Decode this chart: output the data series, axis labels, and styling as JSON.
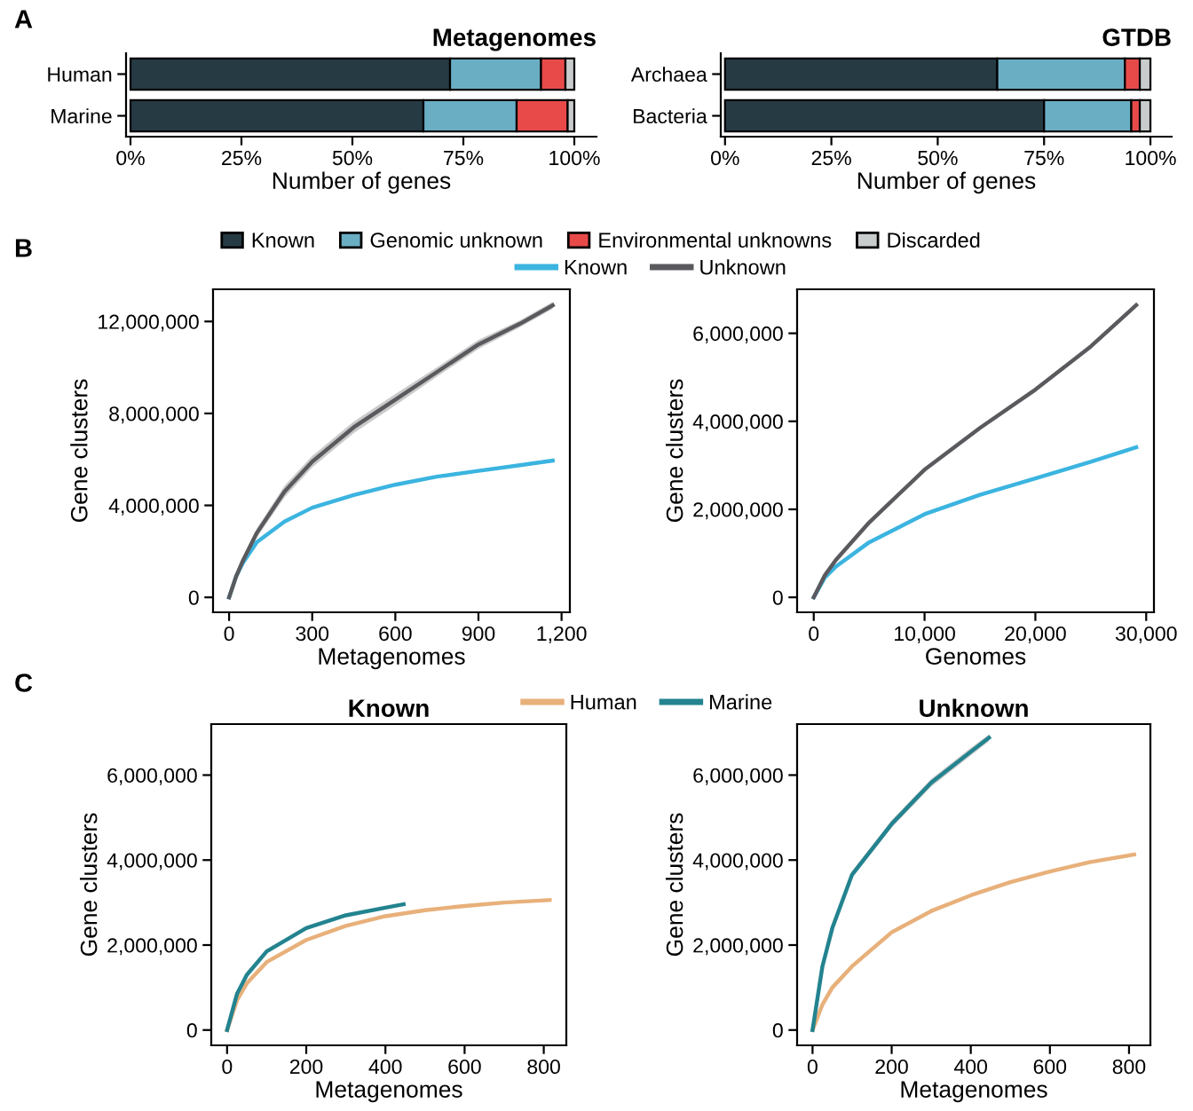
{
  "chart_data": [
    {
      "type": "bar",
      "orientation": "horizontal",
      "stacked": true,
      "title": "Metagenomes",
      "xlabel": "Number of genes",
      "annotations": [
        "A"
      ],
      "legend": "bottom right",
      "categories": [
        "Human",
        "Marine"
      ],
      "xlim": [
        -1,
        105
      ],
      "xticks": [
        {
          "value": 0,
          "label": "0%"
        },
        {
          "value": 25,
          "label": "25%"
        },
        {
          "value": 50,
          "label": "50%"
        },
        {
          "value": 75,
          "label": "75%"
        },
        {
          "value": 100,
          "label": "100%"
        }
      ],
      "series": [
        {
          "name": "Known",
          "color": "#263a44",
          "values": [
            72,
            66
          ]
        },
        {
          "name": "Genomic unknown",
          "color": "#6aaec4",
          "values": [
            20.5,
            21
          ]
        },
        {
          "name": "Environmental unknowns",
          "color": "#e84a4a",
          "values": [
            5.5,
            11.5
          ]
        },
        {
          "name": "Discarded",
          "color": "#c8cccc",
          "values": [
            2,
            1.5
          ]
        }
      ]
    },
    {
      "type": "bar",
      "orientation": "horizontal",
      "stacked": true,
      "title": "GTDB",
      "xlabel": "Number of genes",
      "categories": [
        "Archaea",
        "Bacteria"
      ],
      "xlim": [
        -1,
        105
      ],
      "xticks": [
        {
          "value": 0,
          "label": "0%"
        },
        {
          "value": 25,
          "label": "25%"
        },
        {
          "value": 50,
          "label": "50%"
        },
        {
          "value": 75,
          "label": "75%"
        },
        {
          "value": 100,
          "label": "100%"
        }
      ],
      "series": [
        {
          "color": "#263a44",
          "values": [
            64,
            75
          ]
        },
        {
          "color": "#6aaec4",
          "values": [
            30,
            20.5
          ]
        },
        {
          "color": "#e84a4a",
          "values": [
            3.5,
            2
          ]
        },
        {
          "color": "#c8cccc",
          "values": [
            2.5,
            2.5
          ]
        }
      ]
    },
    {
      "type": "line",
      "xlabel": "Metagenomes",
      "ylabel": "Gene clusters",
      "annotations": [
        "B"
      ],
      "legend": "top right",
      "xlim": [
        -58,
        1230
      ],
      "ylim": [
        -650000,
        13400000
      ],
      "xticks": [
        0,
        300,
        600,
        900,
        {
          "value": 1200,
          "label": "1,200"
        }
      ],
      "yticks": [
        0,
        {
          "value": 4000000,
          "label": "4,000,000"
        },
        {
          "value": 8000000,
          "label": "8,000,000"
        },
        {
          "value": 12000000,
          "label": "12,000,000"
        }
      ],
      "series": [
        {
          "name": "Known",
          "color": "#3bb4e0",
          "x": [
            0,
            25,
            50,
            100,
            200,
            300,
            450,
            600,
            750,
            900,
            1050,
            1168
          ],
          "values": [
            0,
            900000,
            1500000,
            2400000,
            3300000,
            3900000,
            4450000,
            4900000,
            5250000,
            5500000,
            5750000,
            5950000
          ]
        },
        {
          "name": "Unknown",
          "color": "#5a5a5e",
          "x": [
            0,
            25,
            50,
            100,
            200,
            300,
            450,
            600,
            750,
            900,
            1050,
            1168
          ],
          "values": [
            0,
            900000,
            1600000,
            2800000,
            4600000,
            5900000,
            7400000,
            8600000,
            9800000,
            11000000,
            11900000,
            12700000
          ],
          "lower": [
            0,
            800000,
            1450000,
            2600000,
            4350000,
            5650000,
            7150000,
            8350000,
            9600000,
            10800000,
            11750000,
            12550000
          ],
          "upper": [
            0,
            1000000,
            1750000,
            3000000,
            4850000,
            6150000,
            7650000,
            8850000,
            10000000,
            11200000,
            12050000,
            12850000
          ]
        }
      ]
    },
    {
      "type": "line",
      "xlabel": "Genomes",
      "ylabel": "Gene clusters",
      "xlim": [
        -1500,
        30700
      ],
      "ylim": [
        -340000,
        7000000
      ],
      "xticks": [
        0,
        {
          "value": 10000,
          "label": "10,000"
        },
        {
          "value": 20000,
          "label": "20,000"
        },
        {
          "value": 30000,
          "label": "30,000"
        }
      ],
      "yticks": [
        0,
        {
          "value": 2000000,
          "label": "2,000,000"
        },
        {
          "value": 4000000,
          "label": "4,000,000"
        },
        {
          "value": 6000000,
          "label": "6,000,000"
        }
      ],
      "series": [
        {
          "color": "#3bb4e0",
          "x": [
            0,
            1000,
            2000,
            5000,
            10000,
            15000,
            20000,
            25000,
            29100
          ],
          "values": [
            0,
            450000,
            700000,
            1250000,
            1890000,
            2330000,
            2700000,
            3080000,
            3410000
          ]
        },
        {
          "color": "#5a5a5e",
          "x": [
            0,
            1000,
            2000,
            5000,
            10000,
            15000,
            20000,
            25000,
            29100
          ],
          "values": [
            0,
            500000,
            850000,
            1700000,
            2900000,
            3850000,
            4720000,
            5700000,
            6640000
          ]
        }
      ]
    },
    {
      "type": "line",
      "title": "Known",
      "xlabel": "Metagenomes",
      "ylabel": "Gene clusters",
      "annotations": [
        "C"
      ],
      "legend": "top right",
      "xlim": [
        -40,
        857
      ],
      "ylim": [
        -360000,
        7200000
      ],
      "xticks": [
        0,
        200,
        400,
        600,
        800
      ],
      "yticks": [
        0,
        {
          "value": 2000000,
          "label": "2,000,000"
        },
        {
          "value": 4000000,
          "label": "4,000,000"
        },
        {
          "value": 6000000,
          "label": "6,000,000"
        }
      ],
      "series": [
        {
          "name": "Human",
          "color": "#e8b07a",
          "x": [
            0,
            25,
            50,
            100,
            200,
            300,
            400,
            500,
            600,
            700,
            815
          ],
          "values": [
            0,
            700000,
            1100000,
            1600000,
            2120000,
            2450000,
            2680000,
            2820000,
            2920000,
            3000000,
            3060000
          ]
        },
        {
          "name": "Marine",
          "color": "#23838f",
          "x": [
            0,
            25,
            50,
            100,
            200,
            300,
            400,
            446
          ],
          "values": [
            0,
            850000,
            1300000,
            1850000,
            2400000,
            2700000,
            2880000,
            2960000
          ]
        }
      ]
    },
    {
      "type": "line",
      "title": "Unknown",
      "xlabel": "Metagenomes",
      "ylabel": "Gene clusters",
      "xlim": [
        -39,
        854
      ],
      "ylim": [
        -360000,
        7200000
      ],
      "xticks": [
        0,
        200,
        400,
        600,
        800
      ],
      "yticks": [
        0,
        {
          "value": 2000000,
          "label": "2,000,000"
        },
        {
          "value": 4000000,
          "label": "4,000,000"
        },
        {
          "value": 6000000,
          "label": "6,000,000"
        }
      ],
      "series": [
        {
          "color": "#e8b07a",
          "x": [
            0,
            25,
            50,
            100,
            200,
            300,
            400,
            500,
            600,
            700,
            813
          ],
          "values": [
            0,
            600000,
            1000000,
            1500000,
            2300000,
            2800000,
            3170000,
            3480000,
            3730000,
            3950000,
            4130000
          ]
        },
        {
          "color": "#23838f",
          "x": [
            0,
            25,
            50,
            100,
            200,
            300,
            400,
            446
          ],
          "values": [
            0,
            1500000,
            2400000,
            3660000,
            4850000,
            5820000,
            6550000,
            6880000
          ],
          "lower": [
            0,
            1450000,
            2330000,
            3580000,
            4760000,
            5730000,
            6460000,
            6800000
          ],
          "upper": [
            0,
            1550000,
            2470000,
            3740000,
            4940000,
            5910000,
            6640000,
            6960000
          ]
        }
      ]
    }
  ]
}
